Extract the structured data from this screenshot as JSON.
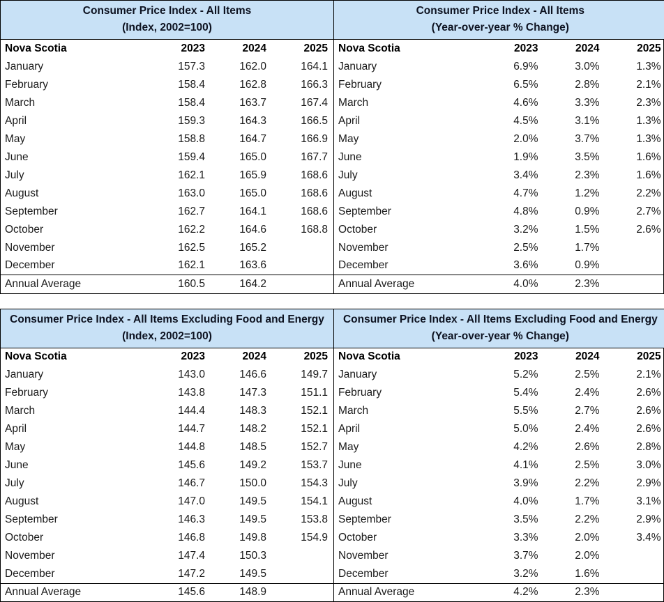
{
  "accent": {
    "header_bg": "#c8e1f6",
    "border": "#000000",
    "title_text": "#0d1220"
  },
  "tables": [
    {
      "title": "Consumer Price Index - All Items",
      "subtitle": "(Index, 2002=100)",
      "region": "Nova Scotia",
      "years": [
        "2023",
        "2024",
        "2025"
      ],
      "rows": [
        {
          "label": "January",
          "values": [
            "157.3",
            "162.0",
            "164.1"
          ]
        },
        {
          "label": "February",
          "values": [
            "158.4",
            "162.8",
            "166.3"
          ]
        },
        {
          "label": "March",
          "values": [
            "158.4",
            "163.7",
            "167.4"
          ]
        },
        {
          "label": "April",
          "values": [
            "159.3",
            "164.3",
            "166.5"
          ]
        },
        {
          "label": "May",
          "values": [
            "158.8",
            "164.7",
            "166.9"
          ]
        },
        {
          "label": "June",
          "values": [
            "159.4",
            "165.0",
            "167.7"
          ]
        },
        {
          "label": "July",
          "values": [
            "162.1",
            "165.9",
            "168.6"
          ]
        },
        {
          "label": "August",
          "values": [
            "163.0",
            "165.0",
            "168.6"
          ]
        },
        {
          "label": "September",
          "values": [
            "162.7",
            "164.1",
            "168.6"
          ]
        },
        {
          "label": "October",
          "values": [
            "162.2",
            "164.6",
            "168.8"
          ]
        },
        {
          "label": "November",
          "values": [
            "162.5",
            "165.2",
            ""
          ]
        },
        {
          "label": "December",
          "values": [
            "162.1",
            "163.6",
            ""
          ]
        }
      ],
      "footer": {
        "label": "Annual Average",
        "values": [
          "160.5",
          "164.2",
          ""
        ]
      }
    },
    {
      "title": "Consumer Price Index - All Items",
      "subtitle": "(Year-over-year % Change)",
      "region": "Nova Scotia",
      "years": [
        "2023",
        "2024",
        "2025"
      ],
      "rows": [
        {
          "label": "January",
          "values": [
            "6.9%",
            "3.0%",
            "1.3%"
          ]
        },
        {
          "label": "February",
          "values": [
            "6.5%",
            "2.8%",
            "2.1%"
          ]
        },
        {
          "label": "March",
          "values": [
            "4.6%",
            "3.3%",
            "2.3%"
          ]
        },
        {
          "label": "April",
          "values": [
            "4.5%",
            "3.1%",
            "1.3%"
          ]
        },
        {
          "label": "May",
          "values": [
            "2.0%",
            "3.7%",
            "1.3%"
          ]
        },
        {
          "label": "June",
          "values": [
            "1.9%",
            "3.5%",
            "1.6%"
          ]
        },
        {
          "label": "July",
          "values": [
            "3.4%",
            "2.3%",
            "1.6%"
          ]
        },
        {
          "label": "August",
          "values": [
            "4.7%",
            "1.2%",
            "2.2%"
          ]
        },
        {
          "label": "September",
          "values": [
            "4.8%",
            "0.9%",
            "2.7%"
          ]
        },
        {
          "label": "October",
          "values": [
            "3.2%",
            "1.5%",
            "2.6%"
          ]
        },
        {
          "label": "November",
          "values": [
            "2.5%",
            "1.7%",
            ""
          ]
        },
        {
          "label": "December",
          "values": [
            "3.6%",
            "0.9%",
            ""
          ]
        }
      ],
      "footer": {
        "label": "Annual Average",
        "values": [
          "4.0%",
          "2.3%",
          ""
        ]
      }
    },
    {
      "title": "Consumer Price Index - All Items Excluding Food and Energy",
      "subtitle": "(Index, 2002=100)",
      "region": "Nova Scotia",
      "years": [
        "2023",
        "2024",
        "2025"
      ],
      "rows": [
        {
          "label": "January",
          "values": [
            "143.0",
            "146.6",
            "149.7"
          ]
        },
        {
          "label": "February",
          "values": [
            "143.8",
            "147.3",
            "151.1"
          ]
        },
        {
          "label": "March",
          "values": [
            "144.4",
            "148.3",
            "152.1"
          ]
        },
        {
          "label": "April",
          "values": [
            "144.7",
            "148.2",
            "152.1"
          ]
        },
        {
          "label": "May",
          "values": [
            "144.8",
            "148.5",
            "152.7"
          ]
        },
        {
          "label": "June",
          "values": [
            "145.6",
            "149.2",
            "153.7"
          ]
        },
        {
          "label": "July",
          "values": [
            "146.7",
            "150.0",
            "154.3"
          ]
        },
        {
          "label": "August",
          "values": [
            "147.0",
            "149.5",
            "154.1"
          ]
        },
        {
          "label": "September",
          "values": [
            "146.3",
            "149.5",
            "153.8"
          ]
        },
        {
          "label": "October",
          "values": [
            "146.8",
            "149.8",
            "154.9"
          ]
        },
        {
          "label": "November",
          "values": [
            "147.4",
            "150.3",
            ""
          ]
        },
        {
          "label": "December",
          "values": [
            "147.2",
            "149.5",
            ""
          ]
        }
      ],
      "footer": {
        "label": "Annual Average",
        "values": [
          "145.6",
          "148.9",
          ""
        ]
      }
    },
    {
      "title": "Consumer Price Index - All Items Excluding Food and Energy",
      "subtitle": "(Year-over-year % Change)",
      "region": "Nova Scotia",
      "years": [
        "2023",
        "2024",
        "2025"
      ],
      "rows": [
        {
          "label": "January",
          "values": [
            "5.2%",
            "2.5%",
            "2.1%"
          ]
        },
        {
          "label": "February",
          "values": [
            "5.4%",
            "2.4%",
            "2.6%"
          ]
        },
        {
          "label": "March",
          "values": [
            "5.5%",
            "2.7%",
            "2.6%"
          ]
        },
        {
          "label": "April",
          "values": [
            "5.0%",
            "2.4%",
            "2.6%"
          ]
        },
        {
          "label": "May",
          "values": [
            "4.2%",
            "2.6%",
            "2.8%"
          ]
        },
        {
          "label": "June",
          "values": [
            "4.1%",
            "2.5%",
            "3.0%"
          ]
        },
        {
          "label": "July",
          "values": [
            "3.9%",
            "2.2%",
            "2.9%"
          ]
        },
        {
          "label": "August",
          "values": [
            "4.0%",
            "1.7%",
            "3.1%"
          ]
        },
        {
          "label": "September",
          "values": [
            "3.5%",
            "2.2%",
            "2.9%"
          ]
        },
        {
          "label": "October",
          "values": [
            "3.3%",
            "2.0%",
            "3.4%"
          ]
        },
        {
          "label": "November",
          "values": [
            "3.7%",
            "2.0%",
            ""
          ]
        },
        {
          "label": "December",
          "values": [
            "3.2%",
            "1.6%",
            ""
          ]
        }
      ],
      "footer": {
        "label": "Annual Average",
        "values": [
          "4.2%",
          "2.3%",
          ""
        ]
      }
    }
  ]
}
